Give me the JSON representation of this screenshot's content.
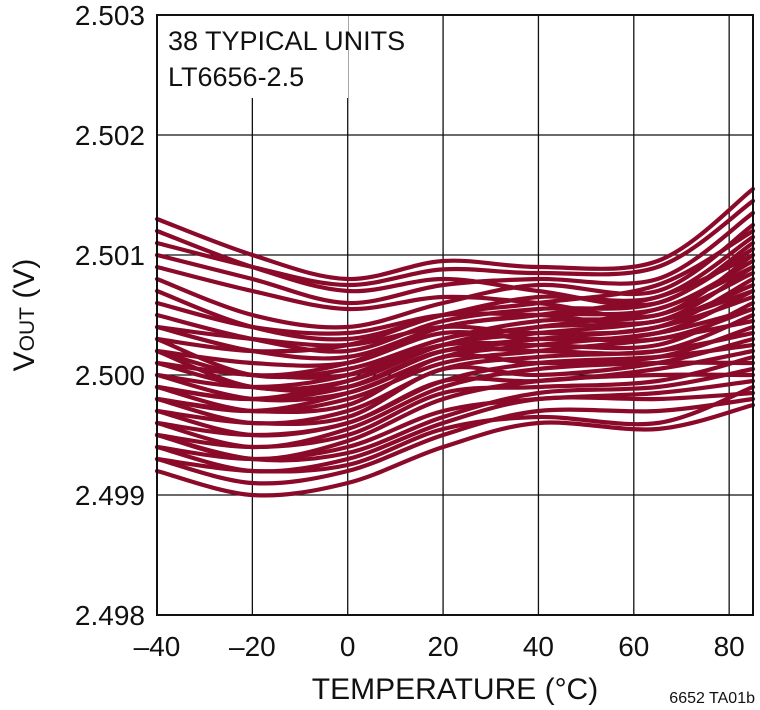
{
  "chart_data": {
    "type": "line",
    "title": "",
    "xlabel": "TEMPERATURE (°C)",
    "ylabel_main": "V",
    "ylabel_sub": "OUT",
    "ylabel_unit": " (V)",
    "xlim": [
      -40,
      85
    ],
    "ylim": [
      2.498,
      2.503
    ],
    "x_ticks": [
      -40,
      -20,
      0,
      20,
      40,
      60,
      80
    ],
    "x_tick_labels": [
      "–40",
      "–20",
      "0",
      "20",
      "40",
      "60",
      "80"
    ],
    "y_ticks": [
      2.498,
      2.499,
      2.5,
      2.501,
      2.502,
      2.503
    ],
    "y_tick_labels": [
      "2.498",
      "2.499",
      "2.500",
      "2.501",
      "2.502",
      "2.503"
    ],
    "grid": true,
    "line_color": "#8b0a2a",
    "annotation_lines": [
      "38 TYPICAL UNITS",
      "LT6656-2.5"
    ],
    "figure_code": "6652 TA01b",
    "x": [
      -40,
      -20,
      0,
      20,
      40,
      65,
      85
    ],
    "series": [
      {
        "values": [
          2.5013,
          2.501,
          2.5008,
          2.50095,
          2.5009,
          2.50095,
          2.50155
        ]
      },
      {
        "values": [
          2.5011,
          2.5009,
          2.50075,
          2.50088,
          2.50085,
          2.5009,
          2.50145
        ]
      },
      {
        "values": [
          2.501,
          2.5008,
          2.5006,
          2.50075,
          2.5008,
          2.5008,
          2.50135
        ]
      },
      {
        "values": [
          2.5008,
          2.5005,
          2.5004,
          2.5006,
          2.50075,
          2.5007,
          2.50125
        ]
      },
      {
        "values": [
          2.5007,
          2.5004,
          2.5003,
          2.5005,
          2.50065,
          2.50065,
          2.50115
        ]
      },
      {
        "values": [
          2.5005,
          2.5003,
          2.5002,
          2.50045,
          2.50055,
          2.5006,
          2.50105
        ]
      },
      {
        "values": [
          2.5004,
          2.5002,
          2.50015,
          2.5004,
          2.5005,
          2.50055,
          2.50095
        ]
      },
      {
        "values": [
          2.5003,
          2.5,
          2.50005,
          2.5003,
          2.50045,
          2.5005,
          2.50085
        ]
      },
      {
        "values": [
          2.5002,
          2.4999,
          2.49995,
          2.50025,
          2.5004,
          2.50045,
          2.50075
        ]
      },
      {
        "values": [
          2.5001,
          2.4999,
          2.4999,
          2.5002,
          2.5003,
          2.5004,
          2.50065
        ]
      },
      {
        "values": [
          2.5,
          2.4998,
          2.49985,
          2.50015,
          2.50025,
          2.50035,
          2.50055
        ]
      },
      {
        "values": [
          2.4999,
          2.4997,
          2.4998,
          2.5001,
          2.5002,
          2.5003,
          2.50045
        ]
      },
      {
        "values": [
          2.4998,
          2.4996,
          2.4997,
          2.50005,
          2.50015,
          2.5002,
          2.50035
        ]
      },
      {
        "values": [
          2.4997,
          2.4995,
          2.4996,
          2.49995,
          2.5001,
          2.50015,
          2.50025
        ]
      },
      {
        "values": [
          2.4996,
          2.4994,
          2.49955,
          2.4999,
          2.50005,
          2.5001,
          2.5001
        ]
      },
      {
        "values": [
          2.4995,
          2.4993,
          2.49945,
          2.4998,
          2.49995,
          2.5,
          2.5
        ]
      },
      {
        "values": [
          2.4994,
          2.4992,
          2.4993,
          2.4996,
          2.4998,
          2.4998,
          2.49985
        ]
      },
      {
        "values": [
          2.4993,
          2.4991,
          2.4992,
          2.4995,
          2.4997,
          2.4997,
          2.4998
        ]
      },
      {
        "values": [
          2.4992,
          2.499,
          2.4991,
          2.4994,
          2.4996,
          2.49955,
          2.49975
        ]
      },
      {
        "values": [
          2.5012,
          2.5009,
          2.5007,
          2.5008,
          2.5007,
          2.5006,
          2.5011
        ]
      },
      {
        "values": [
          2.5009,
          2.5007,
          2.50055,
          2.50065,
          2.5006,
          2.5005,
          2.501
        ]
      },
      {
        "values": [
          2.5006,
          2.5004,
          2.50035,
          2.5005,
          2.5005,
          2.50045,
          2.5009
        ]
      },
      {
        "values": [
          2.5004,
          2.5003,
          2.50025,
          2.5004,
          2.50035,
          2.5004,
          2.5008
        ]
      },
      {
        "values": [
          2.5002,
          2.5001,
          2.5001,
          2.50035,
          2.5003,
          2.50035,
          2.5007
        ]
      },
      {
        "values": [
          2.5001,
          2.5,
          2.5,
          2.50025,
          2.50025,
          2.50025,
          2.5006
        ]
      },
      {
        "values": [
          2.4999,
          2.4998,
          2.4999,
          2.5002,
          2.5002,
          2.5002,
          2.5005
        ]
      },
      {
        "values": [
          2.4998,
          2.4997,
          2.49975,
          2.50015,
          2.5001,
          2.50015,
          2.5004
        ]
      },
      {
        "values": [
          2.4997,
          2.4996,
          2.49965,
          2.50005,
          2.5,
          2.5001,
          2.5003
        ]
      },
      {
        "values": [
          2.4996,
          2.4995,
          2.4996,
          2.49995,
          2.49995,
          2.50005,
          2.5002
        ]
      },
      {
        "values": [
          2.4995,
          2.4994,
          2.4995,
          2.49985,
          2.4999,
          2.49995,
          2.50015
        ]
      },
      {
        "values": [
          2.5003,
          2.5002,
          2.50025,
          2.5005,
          2.5006,
          2.50075,
          2.5012
        ]
      },
      {
        "values": [
          2.5002,
          2.5,
          2.5001,
          2.5004,
          2.5005,
          2.50065,
          2.501
        ]
      },
      {
        "values": [
          2.5,
          2.4999,
          2.5,
          2.5003,
          2.5004,
          2.50055,
          2.5009
        ]
      },
      {
        "values": [
          2.4999,
          2.4998,
          2.49995,
          2.50025,
          2.50035,
          2.50045,
          2.5007
        ]
      },
      {
        "values": [
          2.4998,
          2.4997,
          2.49985,
          2.50015,
          2.5003,
          2.5003,
          2.50055
        ]
      },
      {
        "values": [
          2.4994,
          2.4993,
          2.4994,
          2.4997,
          2.4998,
          2.49985,
          2.49995
        ]
      },
      {
        "values": [
          2.4993,
          2.4992,
          2.49925,
          2.49955,
          2.49965,
          2.4996,
          2.4999
        ]
      },
      {
        "values": [
          2.4995,
          2.4993,
          2.49935,
          2.49965,
          2.49985,
          2.4999,
          2.50005
        ]
      }
    ]
  }
}
